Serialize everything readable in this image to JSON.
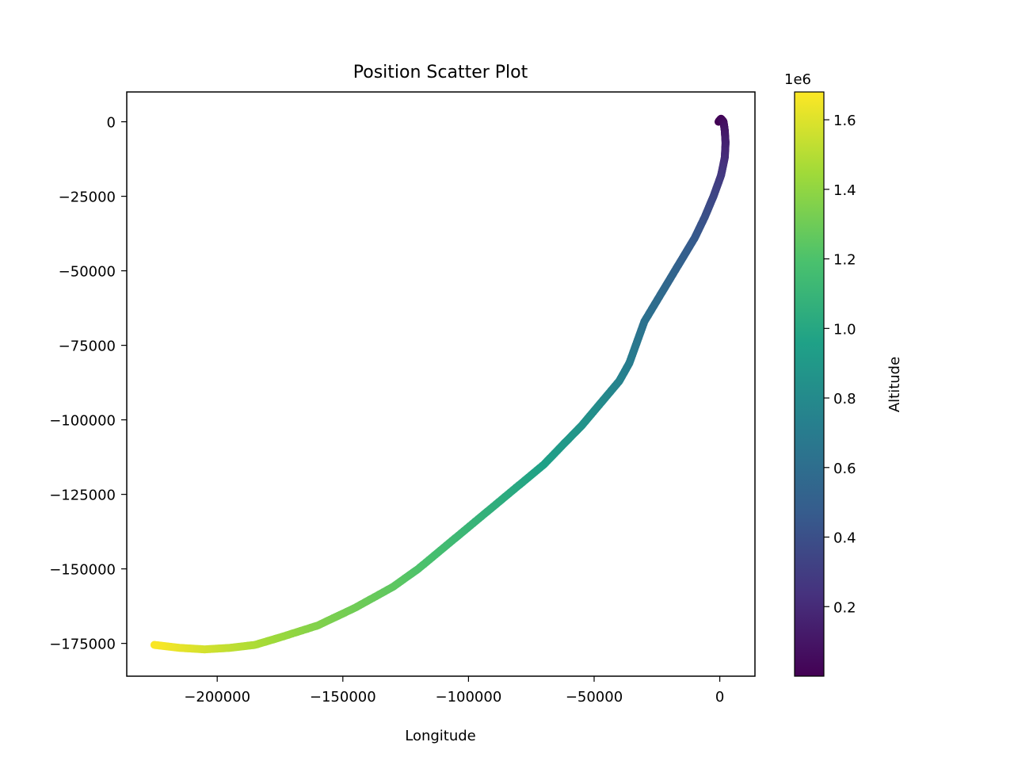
{
  "chart_data": {
    "type": "scatter",
    "title": "Position Scatter Plot",
    "xlabel": "Longitude",
    "ylabel": "",
    "xlim": [
      -236000,
      14000
    ],
    "ylim": [
      -186000,
      10000
    ],
    "x_ticks": [
      -200000,
      -150000,
      -100000,
      -50000,
      0
    ],
    "x_tick_labels": [
      "−200000",
      "−150000",
      "−100000",
      "−50000",
      "0"
    ],
    "y_ticks": [
      0,
      -25000,
      -50000,
      -75000,
      -100000,
      -125000,
      -150000,
      -175000
    ],
    "y_tick_labels": [
      "0",
      "−25000",
      "−50000",
      "−75000",
      "−100000",
      "−125000",
      "−150000",
      "−175000"
    ],
    "grid": false,
    "colormap": "viridis",
    "colorbar": {
      "label": "Altitude",
      "offset_text": "1e6",
      "range": [
        0.0,
        1.68
      ],
      "ticks": [
        0.2,
        0.4,
        0.6,
        0.8,
        1.0,
        1.2,
        1.4,
        1.6
      ],
      "tick_labels": [
        "0.2",
        "0.4",
        "0.6",
        "0.8",
        "1.0",
        "1.2",
        "1.4",
        "1.6"
      ]
    },
    "series": [
      {
        "x": [
          -500,
          500,
          1500,
          2000,
          2300,
          2000,
          500,
          -2500,
          -6000,
          -10000,
          -15000,
          -20000,
          -25000,
          -30000,
          -33000,
          -36000,
          -40000,
          -45000,
          -50000,
          -55000,
          -62000,
          -70000,
          -80000,
          -90000,
          -100000,
          -110000,
          -120000,
          -130000,
          -145000,
          -160000,
          -175000,
          -185000,
          -195000,
          -205000,
          -215000,
          -225000
        ],
        "y": [
          0,
          1000,
          0,
          -3000,
          -7000,
          -12000,
          -18000,
          -25000,
          -32000,
          -39000,
          -46000,
          -53000,
          -60000,
          -67000,
          -74000,
          -81000,
          -87000,
          -92000,
          -97000,
          -102000,
          -108000,
          -115000,
          -122000,
          -129000,
          -136000,
          -143000,
          -150000,
          -156000,
          -163000,
          -169000,
          -173000,
          -175500,
          -176500,
          -177000,
          -176500,
          -175500
        ],
        "altitude": [
          0.0,
          0.02,
          0.05,
          0.1,
          0.15,
          0.2,
          0.27,
          0.34,
          0.4,
          0.45,
          0.5,
          0.54,
          0.58,
          0.62,
          0.66,
          0.7,
          0.74,
          0.78,
          0.82,
          0.86,
          0.9,
          0.95,
          1.0,
          1.05,
          1.1,
          1.15,
          1.2,
          1.25,
          1.3,
          1.35,
          1.42,
          1.47,
          1.52,
          1.57,
          1.62,
          1.67
        ]
      }
    ]
  }
}
